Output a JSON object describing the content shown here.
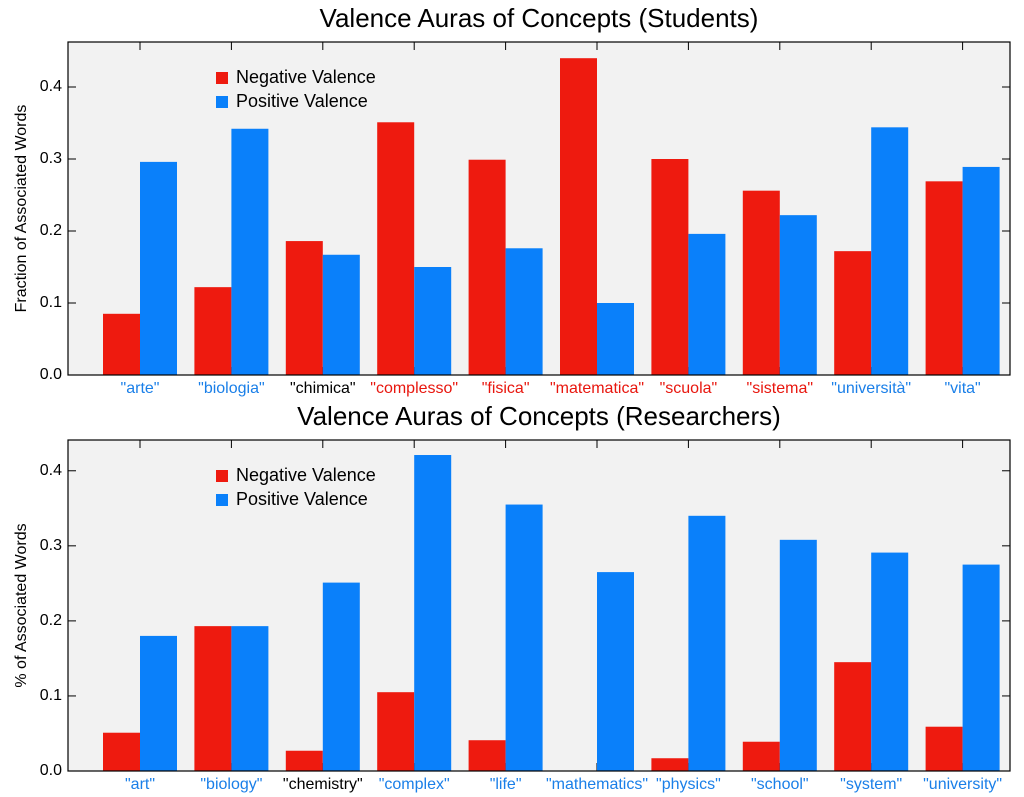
{
  "chart_data": [
    {
      "type": "bar",
      "title": "Valence Auras of Concepts (Students)",
      "ylabel": "Fraction of Associated Words",
      "categories": [
        "\"arte\"",
        "\"biologia\"",
        "\"chimica\"",
        "\"complesso\"",
        "\"fisica\"",
        "\"matematica\"",
        "\"scuola\"",
        "\"sistema\"",
        "\"università\"",
        "\"vita\""
      ],
      "category_colors": [
        "#1a7fe8",
        "#1a7fe8",
        "#000000",
        "#e8160e",
        "#e8160e",
        "#e8160e",
        "#e8160e",
        "#e8160e",
        "#1a7fe8",
        "#1a7fe8"
      ],
      "series": [
        {
          "name": "Negative Valence",
          "color": "#ee1a0f",
          "values": [
            0.085,
            0.122,
            0.186,
            0.351,
            0.299,
            0.44,
            0.3,
            0.256,
            0.172,
            0.269
          ]
        },
        {
          "name": "Positive Valence",
          "color": "#0a80fa",
          "values": [
            0.296,
            0.342,
            0.167,
            0.15,
            0.176,
            0.1,
            0.196,
            0.222,
            0.344,
            0.289
          ]
        }
      ],
      "ylim": [
        0,
        0.4625
      ],
      "yticks": [
        {
          "value": 0,
          "label": "0.0"
        },
        0.1,
        0.2,
        0.3,
        0.4
      ],
      "legend": "upper left"
    },
    {
      "type": "bar",
      "title": "Valence Auras of Concepts (Researchers)",
      "ylabel": "% of Associated Words",
      "categories": [
        "\"art\"",
        "\"biology\"",
        "\"chemistry\"",
        "\"complex\"",
        "\"life\"",
        "\"mathematics\"",
        "\"physics\"",
        "\"school\"",
        "\"system\"",
        "\"university\""
      ],
      "category_colors": [
        "#1a7fe8",
        "#1a7fe8",
        "#000000",
        "#1a7fe8",
        "#1a7fe8",
        "#1a7fe8",
        "#1a7fe8",
        "#1a7fe8",
        "#1a7fe8",
        "#1a7fe8"
      ],
      "series": [
        {
          "name": "Negative Valence",
          "color": "#ee1a0f",
          "values": [
            0.051,
            0.193,
            0.027,
            0.105,
            0.041,
            0,
            0.017,
            0.039,
            0.145,
            0.059
          ]
        },
        {
          "name": "Positive Valence",
          "color": "#0a80fa",
          "values": [
            0.18,
            0.193,
            0.251,
            0.421,
            0.355,
            0.265,
            0.34,
            0.308,
            0.291,
            0.275
          ]
        }
      ],
      "ylim": [
        0,
        0.441
      ],
      "yticks": [
        {
          "value": 0,
          "label": "0.0"
        },
        0.1,
        0.2,
        0.3,
        0.4
      ],
      "legend": "upper left"
    }
  ]
}
